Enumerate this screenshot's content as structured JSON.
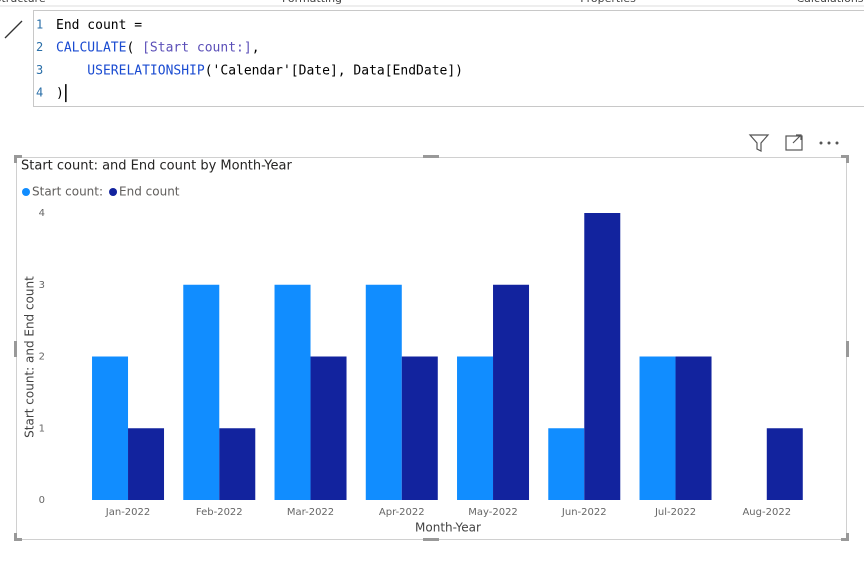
{
  "ribbon_tabs": [
    "Structure",
    "Formatting",
    "Properties",
    "Calculations"
  ],
  "formula": {
    "lines": [
      {
        "number": "1",
        "tokens": [
          {
            "text": "End count =",
            "color": "#000000"
          }
        ]
      },
      {
        "number": "2",
        "tokens": [
          {
            "text": "CALCULATE",
            "color": "#1a4bd1"
          },
          {
            "text": "( ",
            "color": "#000000"
          },
          {
            "text": "[Start count:]",
            "color": "#5b4fb8"
          },
          {
            "text": ",",
            "color": "#000000"
          }
        ]
      },
      {
        "number": "3",
        "tokens": [
          {
            "text": "    USERELATIONSHIP",
            "color": "#1a4bd1"
          },
          {
            "text": "('Calendar'[Date], Data[EndDate])",
            "color": "#000000"
          }
        ]
      },
      {
        "number": "4",
        "tokens": [
          {
            "text": ")",
            "color": "#000000"
          }
        ]
      }
    ]
  },
  "chart_data": {
    "type": "bar",
    "title": "Start count: and End count by Month-Year",
    "x_label": "Month-Year",
    "y_label": "Start count: and End count",
    "categories": [
      "Jan-2022",
      "Feb-2022",
      "Mar-2022",
      "Apr-2022",
      "May-2022",
      "Jun-2022",
      "Jul-2022",
      "Aug-2022"
    ],
    "series": [
      {
        "name": "Start count:",
        "color": "#118dff",
        "values": [
          2,
          3,
          3,
          3,
          2,
          1,
          2,
          null
        ]
      },
      {
        "name": "End count",
        "color": "#12239e",
        "values": [
          1,
          1,
          2,
          2,
          3,
          4,
          2,
          1
        ]
      }
    ],
    "ylim": [
      0,
      4
    ],
    "yticks": [
      0,
      1,
      2,
      3,
      4
    ],
    "grid": false,
    "legend": "top-left"
  }
}
